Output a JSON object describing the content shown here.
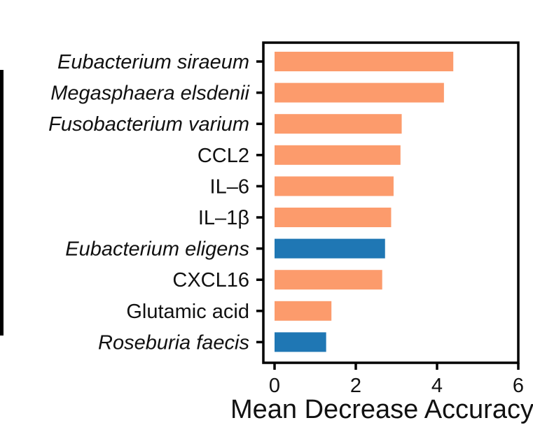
{
  "chart_data": {
    "type": "bar",
    "orientation": "horizontal",
    "categories": [
      "Eubacterium siraeum",
      "Megasphaera elsdenii",
      "Fusobacterium varium",
      "CCL2",
      "IL–6",
      "IL–1β",
      "Eubacterium eligens",
      "CXCL16",
      "Glutamic acid",
      "Roseburia faecis"
    ],
    "italic": [
      true,
      true,
      true,
      false,
      false,
      false,
      true,
      false,
      false,
      true
    ],
    "values": [
      4.4,
      4.17,
      3.13,
      3.1,
      2.93,
      2.87,
      2.72,
      2.65,
      1.4,
      1.27
    ],
    "bar_colors": [
      "#fc9b6c",
      "#fc9b6c",
      "#fc9b6c",
      "#fc9b6c",
      "#fc9b6c",
      "#fc9b6c",
      "#1f77b4",
      "#fc9b6c",
      "#fc9b6c",
      "#1f77b4"
    ],
    "xlabel": "Mean Decrease Accuracy",
    "xticks": [
      0,
      2,
      4,
      6
    ],
    "xlim": [
      -0.25,
      6.0
    ],
    "grid": false,
    "legend": "none"
  },
  "colors": {
    "up": "#fc9b6c",
    "down": "#1f77b4",
    "axis": "#000000"
  }
}
